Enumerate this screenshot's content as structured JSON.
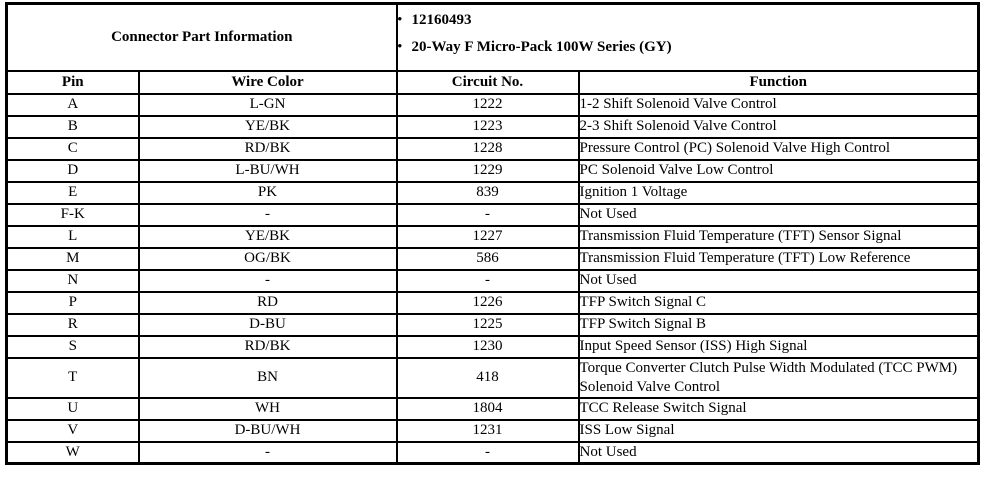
{
  "part_info": {
    "title": "Connector Part Information",
    "bullet_icon": "•",
    "bullets": [
      "12160493",
      "20-Way F Micro-Pack 100W Series (GY)"
    ]
  },
  "table": {
    "headers": [
      "Pin",
      "Wire Color",
      "Circuit No.",
      "Function"
    ],
    "rows": [
      {
        "pin": "A",
        "wire_color": "L-GN",
        "circuit": "1222",
        "function": "1-2 Shift Solenoid Valve Control"
      },
      {
        "pin": "B",
        "wire_color": "YE/BK",
        "circuit": "1223",
        "function": "2-3 Shift Solenoid Valve Control"
      },
      {
        "pin": "C",
        "wire_color": "RD/BK",
        "circuit": "1228",
        "function": "Pressure Control (PC) Solenoid Valve High Control"
      },
      {
        "pin": "D",
        "wire_color": "L-BU/WH",
        "circuit": "1229",
        "function": "PC Solenoid Valve Low Control"
      },
      {
        "pin": "E",
        "wire_color": "PK",
        "circuit": "839",
        "function": "Ignition 1 Voltage"
      },
      {
        "pin": "F-K",
        "wire_color": "-",
        "circuit": "-",
        "function": "Not Used"
      },
      {
        "pin": "L",
        "wire_color": "YE/BK",
        "circuit": "1227",
        "function": "Transmission Fluid Temperature (TFT) Sensor Signal"
      },
      {
        "pin": "M",
        "wire_color": "OG/BK",
        "circuit": "586",
        "function": "Transmission Fluid Temperature (TFT) Low Reference"
      },
      {
        "pin": "N",
        "wire_color": "-",
        "circuit": "-",
        "function": "Not Used"
      },
      {
        "pin": "P",
        "wire_color": "RD",
        "circuit": "1226",
        "function": "TFP Switch Signal C"
      },
      {
        "pin": "R",
        "wire_color": "D-BU",
        "circuit": "1225",
        "function": "TFP Switch Signal B"
      },
      {
        "pin": "S",
        "wire_color": "RD/BK",
        "circuit": "1230",
        "function": "Input Speed Sensor (ISS) High Signal"
      },
      {
        "pin": "T",
        "wire_color": "BN",
        "circuit": "418",
        "function": "Torque Converter Clutch Pulse Width Modulated (TCC PWM) Solenoid Valve Control"
      },
      {
        "pin": "U",
        "wire_color": "WH",
        "circuit": "1804",
        "function": "TCC Release Switch Signal"
      },
      {
        "pin": "V",
        "wire_color": "D-BU/WH",
        "circuit": "1231",
        "function": "ISS Low Signal"
      },
      {
        "pin": "W",
        "wire_color": "-",
        "circuit": "-",
        "function": "Not Used"
      }
    ]
  },
  "colors": {
    "border": "#000000",
    "background": "#ffffff",
    "text": "#000000"
  }
}
